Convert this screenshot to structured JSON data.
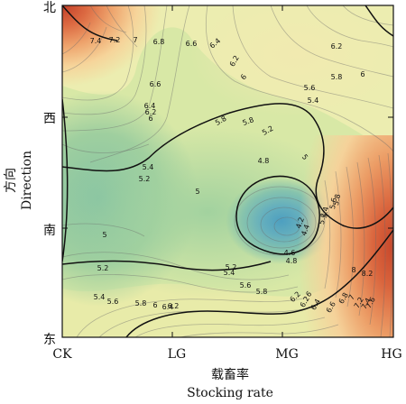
{
  "chart_data": {
    "type": "contour",
    "xlabel_cn": "载畜率",
    "xlabel_en": "Stocking rate",
    "ylabel_cn": "方向",
    "ylabel_en": "Direction",
    "x_categories": [
      "CK",
      "LG",
      "MG",
      "HG"
    ],
    "y_categories": [
      "北",
      "西",
      "南",
      "东"
    ],
    "grid": false,
    "colormap": [
      "#5aa9b6",
      "#7cbf9f",
      "#b7d99a",
      "#e9eea8",
      "#f6e2a3",
      "#f0b27a",
      "#e07a4e",
      "#c84a2e"
    ],
    "z_range": [
      4.0,
      8.4
    ],
    "major_levels": [
      5.0,
      5.4,
      6.4
    ],
    "contour_labels": [
      {
        "text": "7.4"
      },
      {
        "text": "7.2"
      },
      {
        "text": "7"
      },
      {
        "text": "6.8"
      },
      {
        "text": "6.6"
      },
      {
        "text": "6.4"
      },
      {
        "text": "6.2"
      },
      {
        "text": "6"
      },
      {
        "text": "6.2"
      },
      {
        "text": "6"
      },
      {
        "text": "5.8"
      },
      {
        "text": "6.6"
      },
      {
        "text": "6.4"
      },
      {
        "text": "6.2"
      },
      {
        "text": "6"
      },
      {
        "text": "5.8"
      },
      {
        "text": "5.6"
      },
      {
        "text": "5.4"
      },
      {
        "text": "5.8"
      },
      {
        "text": "5.2"
      },
      {
        "text": "5.4"
      },
      {
        "text": "5.2"
      },
      {
        "text": "5"
      },
      {
        "text": "4.8"
      },
      {
        "text": "5"
      },
      {
        "text": "5"
      },
      {
        "text": "5.2"
      },
      {
        "text": "5.4"
      },
      {
        "text": "5.6"
      },
      {
        "text": "5.8"
      },
      {
        "text": "6"
      },
      {
        "text": "6.2"
      },
      {
        "text": "6.4"
      },
      {
        "text": "4.4"
      },
      {
        "text": "4.2"
      },
      {
        "text": "4.6"
      },
      {
        "text": "4.8"
      },
      {
        "text": "5.2"
      },
      {
        "text": "5.4"
      },
      {
        "text": "5.6"
      },
      {
        "text": "5.8"
      },
      {
        "text": "6.2"
      },
      {
        "text": "6"
      },
      {
        "text": "5.2"
      },
      {
        "text": "5.4"
      },
      {
        "text": "5.6"
      },
      {
        "text": "5.8"
      },
      {
        "text": "6.2"
      },
      {
        "text": "6.4"
      },
      {
        "text": "6.6"
      },
      {
        "text": "6.8"
      },
      {
        "text": "7"
      },
      {
        "text": "7.2"
      },
      {
        "text": "7.4"
      },
      {
        "text": "7.6"
      },
      {
        "text": "8"
      },
      {
        "text": "8.2"
      }
    ]
  }
}
